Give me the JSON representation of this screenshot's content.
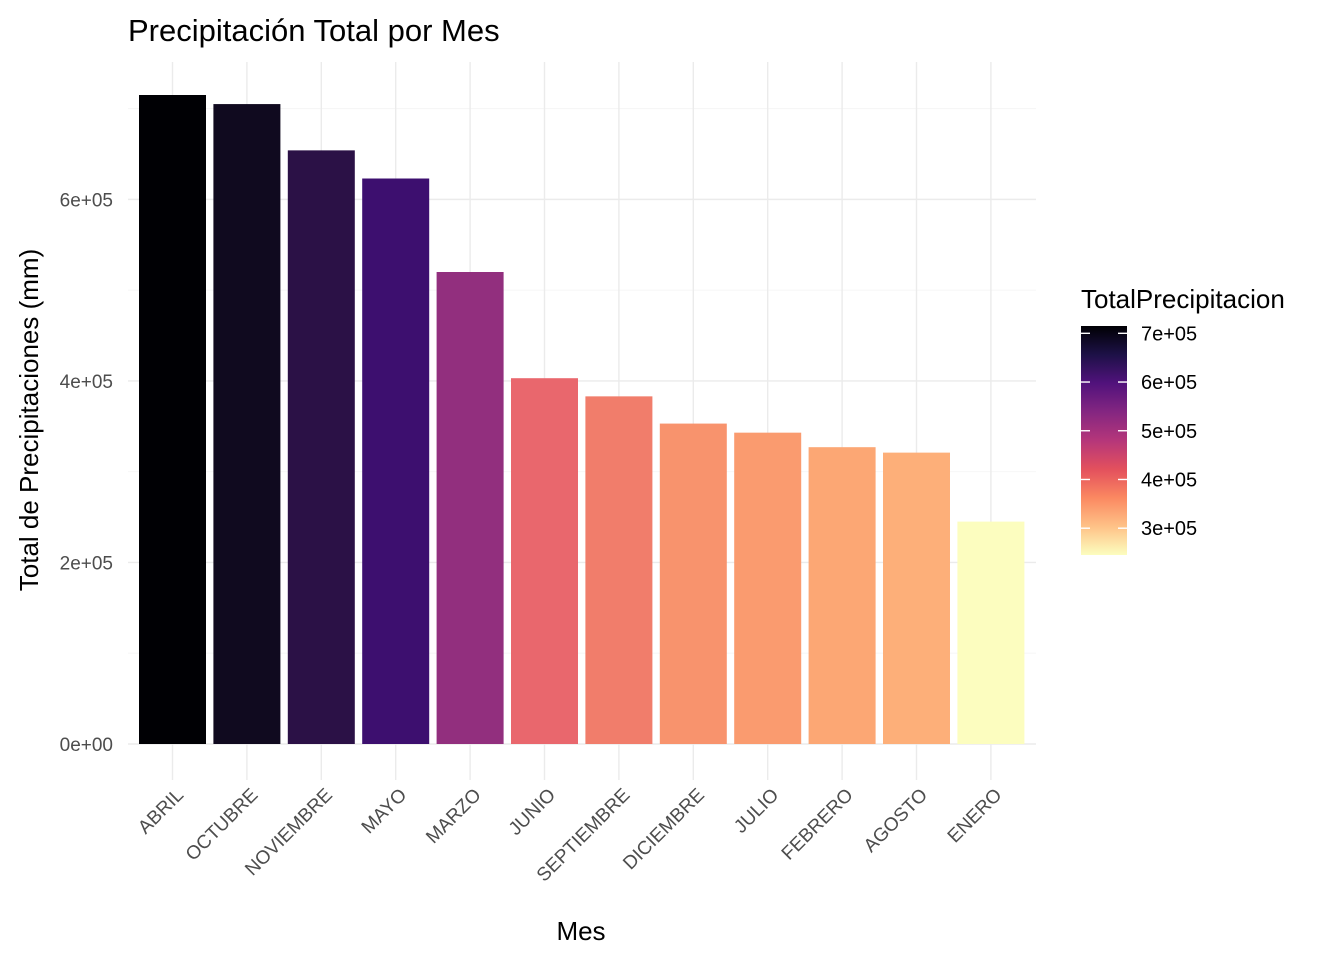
{
  "chart_data": {
    "type": "bar",
    "title": "Precipitación Total por Mes",
    "xlabel": "Mes",
    "ylabel": "Total de Precipitaciones (mm)",
    "categories": [
      "ABRIL",
      "OCTUBRE",
      "NOVIEMBRE",
      "MAYO",
      "MARZO",
      "JUNIO",
      "SEPTIEMBRE",
      "DICIEMBRE",
      "JULIO",
      "FEBRERO",
      "AGOSTO",
      "ENERO"
    ],
    "values": [
      715000,
      705000,
      654000,
      623000,
      520000,
      403000,
      383000,
      353000,
      343000,
      327000,
      321000,
      245000
    ],
    "ylim": [
      0,
      715000
    ],
    "yticks": [
      0,
      200000,
      400000,
      600000
    ],
    "ytick_labels": [
      "0e+00",
      "2e+05",
      "4e+05",
      "6e+05"
    ],
    "grid": true,
    "legend": {
      "title": "TotalPrecipitacion",
      "position": "right",
      "type": "colorbar",
      "range": [
        245000,
        715000
      ],
      "ticks": [
        700000,
        600000,
        500000,
        400000,
        300000
      ],
      "tick_labels": [
        "7e+05",
        "6e+05",
        "5e+05",
        "4e+05",
        "3e+05"
      ]
    },
    "colors": {
      "ABRIL": "#000004",
      "OCTUBRE": "#100a1f",
      "NOVIEMBRE": "#2b1146",
      "MAYO": "#3d0f6f",
      "MARZO": "#922f7e",
      "JUNIO": "#e9676d",
      "SEPTIEMBRE": "#f17d6b",
      "DICIEMBRE": "#f8936d",
      "JULIO": "#fa9b6f",
      "FEBRERO": "#fca774",
      "AGOSTO": "#fdaf79",
      "ENERO": "#fcfdbf"
    },
    "colorbar_stops": [
      "#fcfdbf",
      "#fec287",
      "#fb8861",
      "#e3505d",
      "#b5367a",
      "#842681",
      "#51127c",
      "#1d1147",
      "#000004"
    ]
  }
}
